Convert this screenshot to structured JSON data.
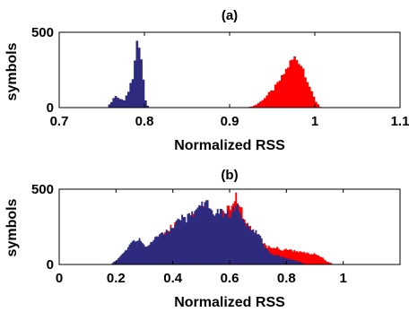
{
  "chart_data": [
    {
      "type": "histogram",
      "title": "(a)",
      "xlabel": "Normalized RSS",
      "ylabel": "symbols",
      "xlim": [
        0.7,
        1.1
      ],
      "ylim": [
        0,
        500
      ],
      "xticks": [
        "0.7",
        "0.8",
        "0.9",
        "1",
        "1.1"
      ],
      "yticks": [
        "0",
        "500"
      ],
      "grid": false,
      "bin_width": 0.0025,
      "colors": {
        "red": "#ff0000",
        "blue": "#2e2a7f"
      },
      "series": [
        {
          "color": "red",
          "x": [
            0.92,
            0.925,
            0.93,
            0.935,
            0.94,
            0.945,
            0.95,
            0.955,
            0.96,
            0.965,
            0.97,
            0.975,
            0.98,
            0.985,
            0.99,
            0.995,
            1.0,
            1.005
          ],
          "values": [
            2,
            8,
            20,
            40,
            65,
            95,
            120,
            160,
            200,
            250,
            300,
            330,
            310,
            260,
            180,
            100,
            40,
            5
          ]
        },
        {
          "color": "blue",
          "x": [
            0.755,
            0.76,
            0.765,
            0.77,
            0.775,
            0.78,
            0.785,
            0.788,
            0.79,
            0.792,
            0.795,
            0.798,
            0.8,
            0.803
          ],
          "values": [
            5,
            40,
            80,
            60,
            50,
            110,
            200,
            350,
            470,
            420,
            330,
            150,
            50,
            5
          ]
        }
      ]
    },
    {
      "type": "histogram",
      "title": "(b)",
      "xlabel": "Normalized RSS",
      "ylabel": "symbols",
      "xlim": [
        0,
        1.2
      ],
      "ylim": [
        0,
        500
      ],
      "xticks": [
        "0",
        "0.2",
        "0.4",
        "0.6",
        "0.8",
        "1"
      ],
      "yticks": [
        "0",
        "500"
      ],
      "grid": false,
      "bin_width": 0.005,
      "colors": {
        "red": "#ff0000",
        "blue": "#2e2a7f"
      },
      "series": [
        {
          "color": "red",
          "x": [
            0.2,
            0.22,
            0.24,
            0.26,
            0.28,
            0.3,
            0.32,
            0.34,
            0.36,
            0.38,
            0.4,
            0.42,
            0.44,
            0.46,
            0.48,
            0.5,
            0.52,
            0.54,
            0.56,
            0.58,
            0.6,
            0.62,
            0.64,
            0.66,
            0.68,
            0.7,
            0.72,
            0.74,
            0.76,
            0.78,
            0.8,
            0.82,
            0.84,
            0.86,
            0.88,
            0.9,
            0.92,
            0.94,
            0.96
          ],
          "values": [
            10,
            40,
            80,
            130,
            110,
            100,
            130,
            160,
            200,
            230,
            260,
            280,
            270,
            290,
            350,
            380,
            330,
            300,
            280,
            350,
            390,
            440,
            350,
            270,
            210,
            160,
            130,
            110,
            110,
            100,
            100,
            90,
            85,
            80,
            70,
            70,
            50,
            20,
            5
          ]
        },
        {
          "color": "blue",
          "x": [
            0.18,
            0.2,
            0.22,
            0.24,
            0.26,
            0.28,
            0.3,
            0.32,
            0.34,
            0.36,
            0.38,
            0.4,
            0.42,
            0.44,
            0.46,
            0.48,
            0.5,
            0.52,
            0.54,
            0.56,
            0.58,
            0.6,
            0.62,
            0.64,
            0.66,
            0.68,
            0.7,
            0.72,
            0.74,
            0.76,
            0.78,
            0.8,
            0.82,
            0.84,
            0.86
          ],
          "values": [
            5,
            30,
            70,
            110,
            160,
            170,
            120,
            140,
            180,
            210,
            220,
            260,
            310,
            300,
            320,
            360,
            400,
            430,
            340,
            360,
            330,
            330,
            400,
            300,
            250,
            220,
            200,
            120,
            80,
            60,
            50,
            40,
            30,
            20,
            5
          ]
        }
      ]
    }
  ]
}
